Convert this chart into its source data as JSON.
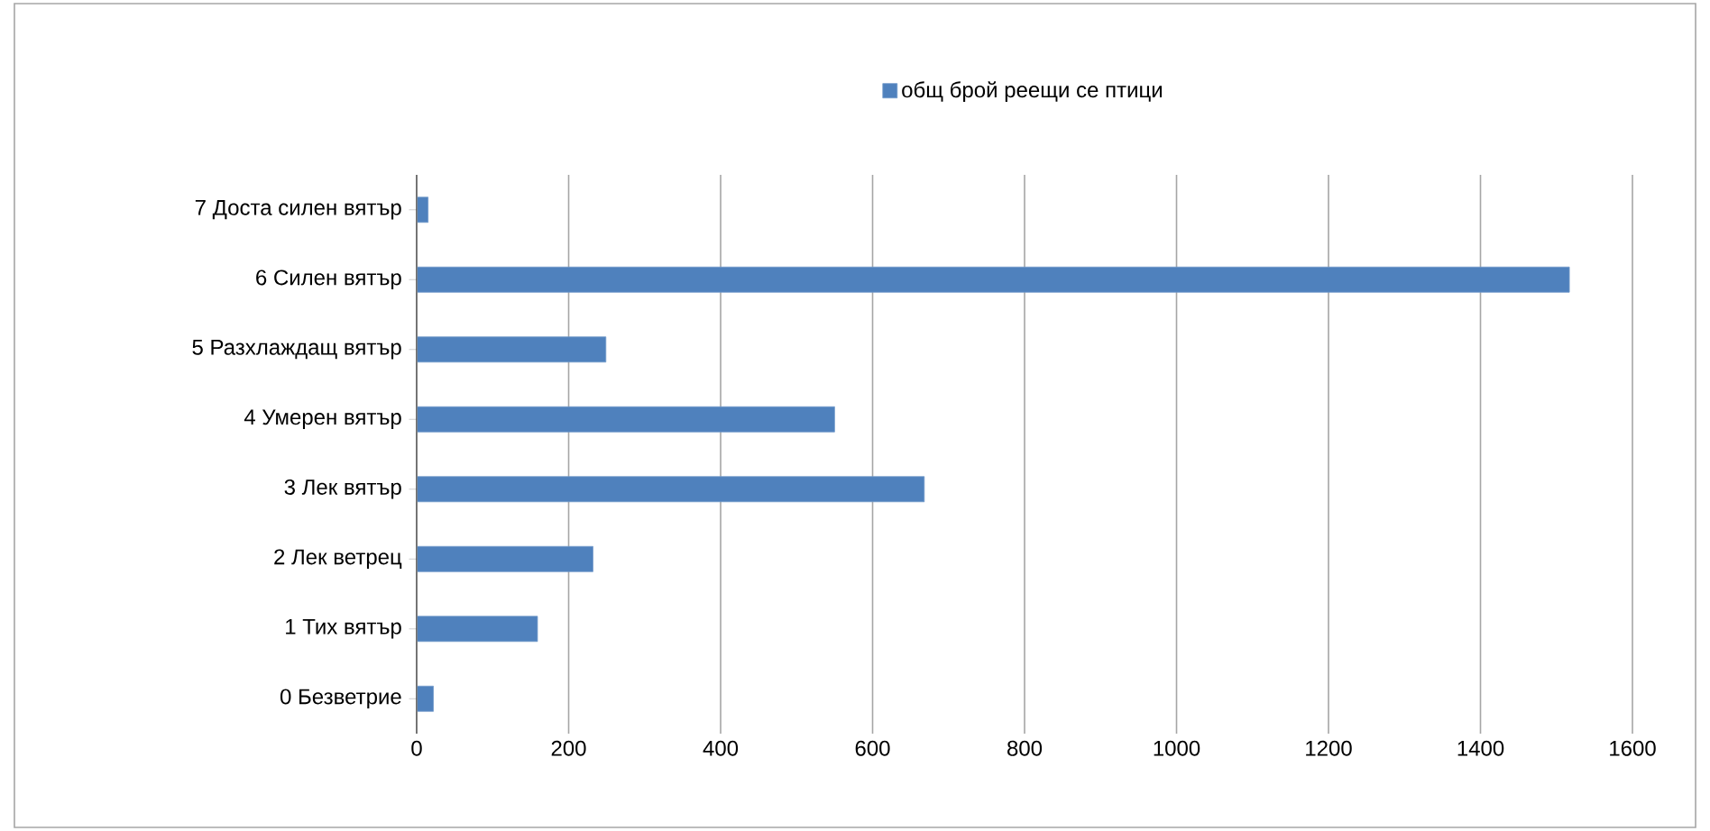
{
  "chart_data": {
    "type": "bar",
    "orientation": "horizontal",
    "categories": [
      "7 Доста силен вятър",
      "6 Силен вятър",
      "5 Разхлаждащ вятър",
      "4 Умерен вятър",
      "3 Лек вятър",
      "2 Лек ветрец",
      "1 Тих вятър",
      "0 Безветрие"
    ],
    "series": [
      {
        "name": "общ брой реещи се птици",
        "color": "#4f81bd",
        "values": [
          15,
          1517,
          249,
          550,
          668,
          232,
          159,
          22
        ]
      }
    ],
    "xlim": [
      0,
      1600
    ],
    "xticks": [
      0,
      200,
      400,
      600,
      800,
      1000,
      1200,
      1400,
      1600
    ],
    "grid": "x",
    "legend": "top"
  }
}
